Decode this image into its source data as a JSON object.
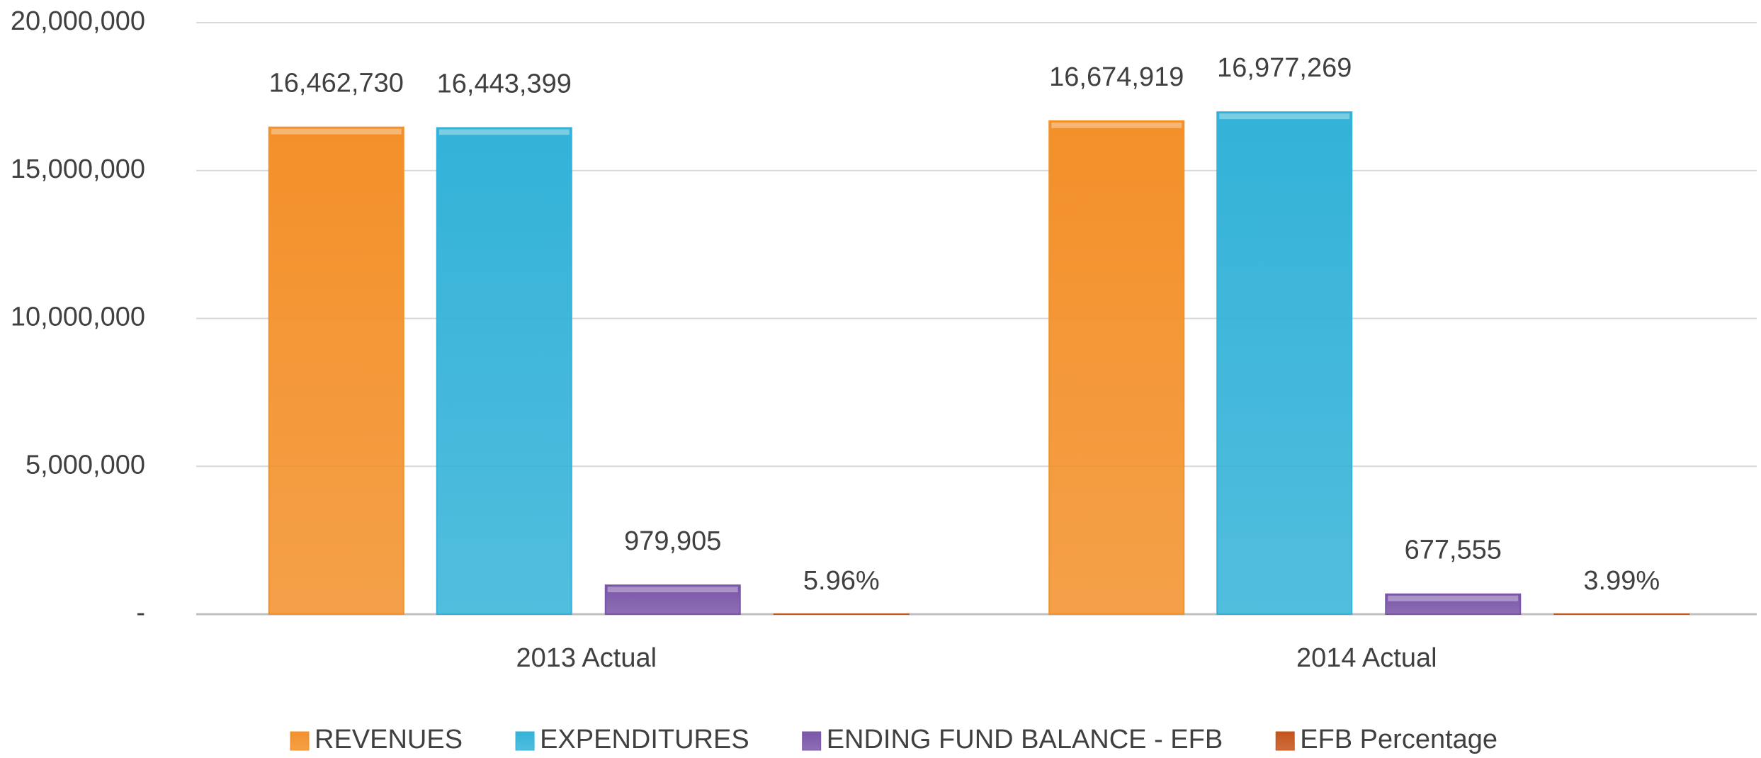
{
  "chart_data": {
    "type": "bar",
    "categories": [
      "2013 Actual",
      "2014 Actual"
    ],
    "series": [
      {
        "name": "REVENUES",
        "color": "#f39029",
        "values": [
          16462730,
          16674919
        ],
        "value_labels": [
          "16,462,730",
          "16,674,919"
        ]
      },
      {
        "name": "EXPENDITURES",
        "color": "#33b2d8",
        "values": [
          16443399,
          16977269
        ],
        "value_labels": [
          "16,443,399",
          "16,977,269"
        ]
      },
      {
        "name": "ENDING FUND BALANCE - EFB",
        "color": "#7a55a8",
        "values": [
          979905,
          677555
        ],
        "value_labels": [
          "979,905",
          "677,555"
        ]
      },
      {
        "name": "EFB Percentage",
        "color": "#c4541a",
        "values": [
          5.96,
          3.99
        ],
        "value_labels": [
          "5.96%",
          "3.99%"
        ]
      }
    ],
    "ylim": [
      0,
      20000000
    ],
    "yticks": [
      {
        "value": 0,
        "label": "-"
      },
      {
        "value": 5000000,
        "label": "5,000,000"
      },
      {
        "value": 10000000,
        "label": "10,000,000"
      },
      {
        "value": 15000000,
        "label": "15,000,000"
      },
      {
        "value": 20000000,
        "label": "20,000,000"
      }
    ],
    "grid": true,
    "legend": "bottom"
  }
}
